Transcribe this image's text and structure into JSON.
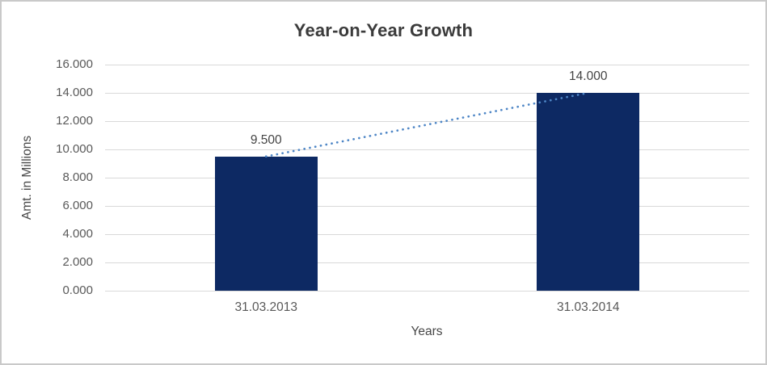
{
  "chart_data": {
    "type": "bar",
    "title": "Year-on-Year Growth",
    "xlabel": "Years",
    "ylabel": "Amt. in Millions",
    "categories": [
      "31.03.2013",
      "31.03.2014"
    ],
    "values": [
      9.5,
      14.0
    ],
    "data_labels": [
      "9.500",
      "14.000"
    ],
    "ylim": [
      0,
      16
    ],
    "ytick_step": 2,
    "ytick_labels": [
      "0.000",
      "2.000",
      "4.000",
      "6.000",
      "8.000",
      "10.000",
      "12.000",
      "14.000",
      "16.000"
    ],
    "grid": true,
    "legend": "none",
    "trendline": {
      "type": "linear",
      "style": "dotted",
      "color": "#4e86c6"
    },
    "colors": {
      "bar": "#0d2963",
      "gridline": "#d9d9d9",
      "title_text": "#3b3b3b",
      "tick_text": "#595959",
      "axis_title_text": "#474747",
      "data_label_text": "#444444",
      "background": "#ffffff",
      "frame_border": "#c9c9c9"
    }
  }
}
